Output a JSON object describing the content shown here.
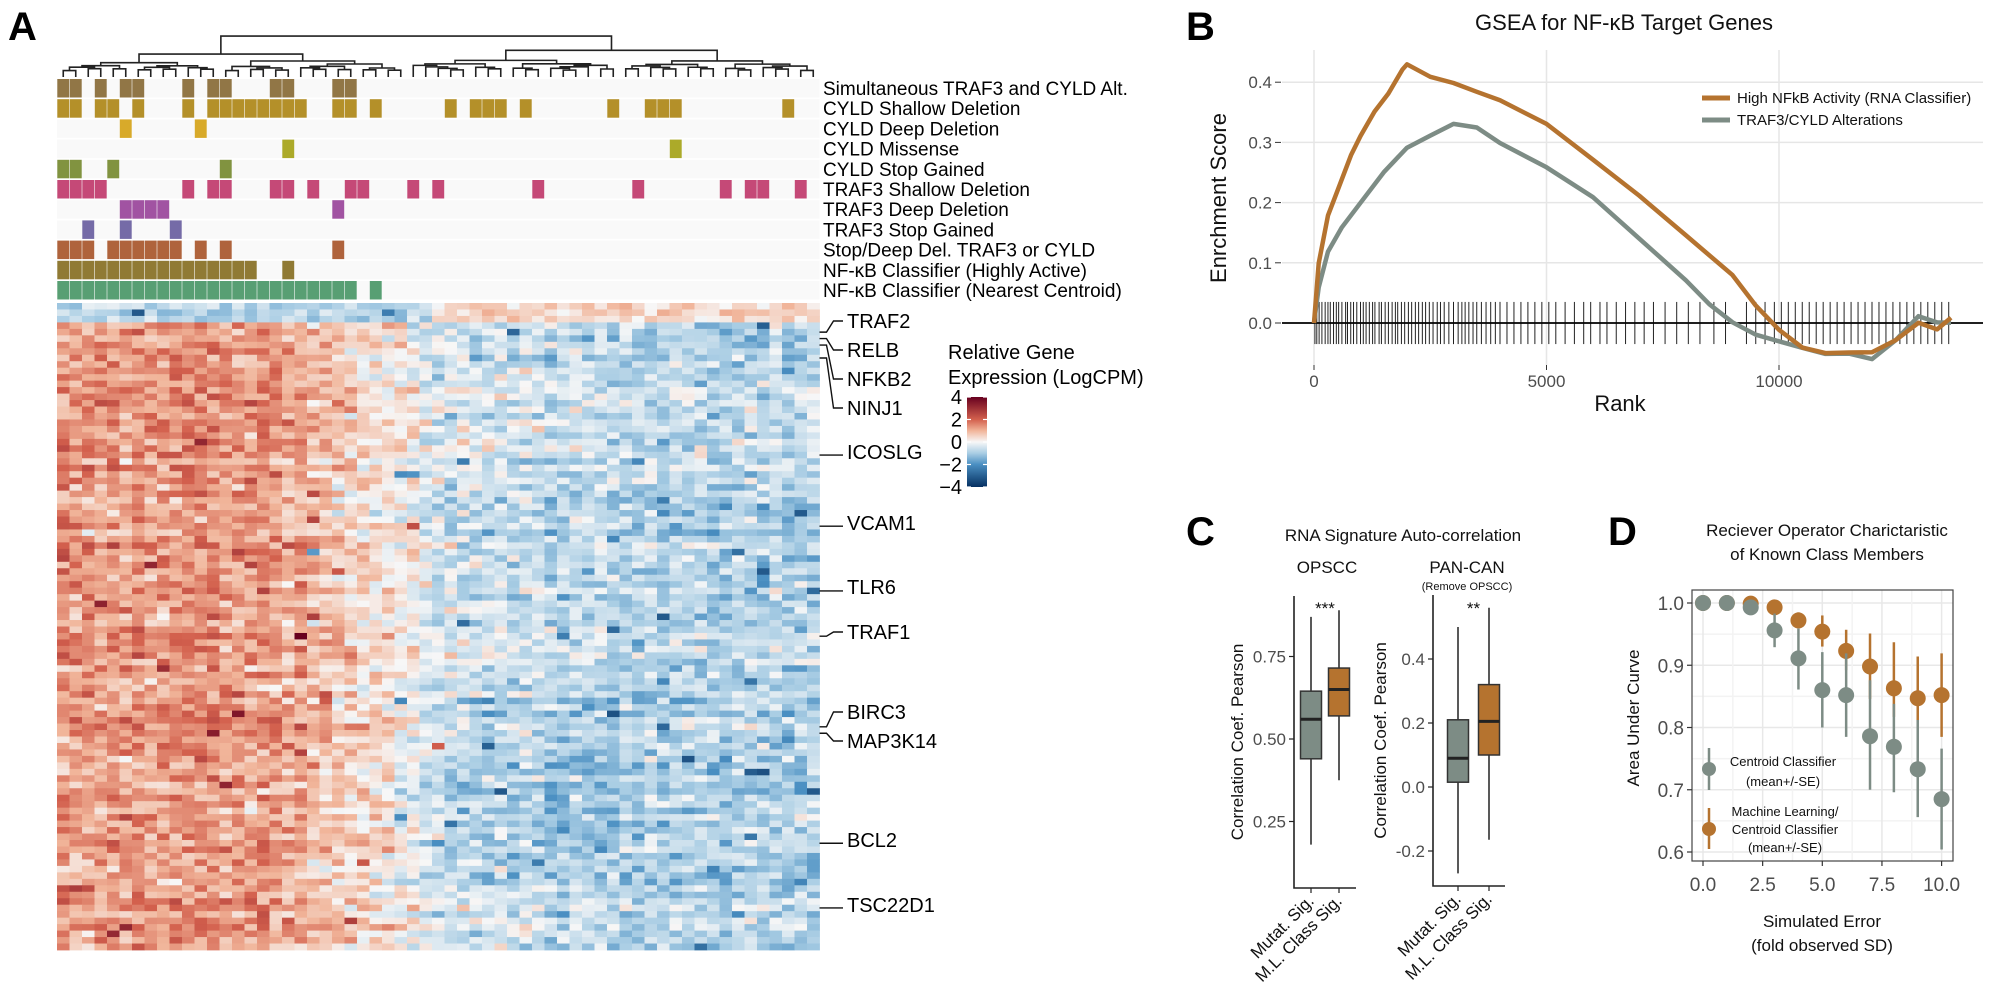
{
  "panel_letters": {
    "a": "A",
    "b": "B",
    "c": "C",
    "d": "D"
  },
  "chart_data": [
    {
      "panel": "A",
      "type": "heatmap",
      "annotation_tracks": [
        {
          "label": "Simultaneous TRAF3 and CYLD Alt.",
          "color": "#8b6f3c",
          "columns": [
            0,
            1,
            3,
            5,
            6,
            10,
            12,
            13,
            17,
            18,
            22,
            23
          ]
        },
        {
          "label": "CYLD Shallow Deletion",
          "color": "#b08a1e",
          "columns": [
            0,
            1,
            3,
            4,
            6,
            10,
            12,
            13,
            14,
            15,
            16,
            17,
            18,
            19,
            22,
            23,
            25,
            31,
            33,
            34,
            35,
            37,
            44,
            47,
            48,
            49,
            58
          ]
        },
        {
          "label": "CYLD Deep Deletion",
          "color": "#d6a51f",
          "columns": [
            5,
            11
          ]
        },
        {
          "label": "CYLD Missense",
          "color": "#a8a51e",
          "columns": [
            18,
            49
          ]
        },
        {
          "label": "CYLD Stop Gained",
          "color": "#7a8d36",
          "columns": [
            0,
            1,
            4,
            13
          ]
        },
        {
          "label": "TRAF3 Shallow Deletion",
          "color": "#c23f70",
          "columns": [
            0,
            1,
            2,
            3,
            10,
            12,
            13,
            17,
            18,
            20,
            23,
            24,
            28,
            30,
            38,
            46,
            53,
            55,
            56,
            59
          ]
        },
        {
          "label": "TRAF3 Deep Deletion",
          "color": "#9c4a9d",
          "columns": [
            5,
            6,
            7,
            8,
            22
          ]
        },
        {
          "label": "TRAF3 Stop Gained",
          "color": "#6e63a2",
          "columns": [
            2,
            5,
            9
          ]
        },
        {
          "label": "Stop/Deep Del. TRAF3 or CYLD",
          "color": "#ab5b31",
          "columns": [
            0,
            1,
            2,
            4,
            5,
            6,
            7,
            8,
            9,
            11,
            13,
            22
          ]
        },
        {
          "label": "NF-κB Classifier (Highly Active)",
          "color": "#8a7329",
          "columns": [
            0,
            1,
            2,
            3,
            4,
            5,
            6,
            7,
            8,
            9,
            10,
            11,
            12,
            13,
            14,
            15,
            18
          ]
        },
        {
          "label": "NF-κB Classifier (Nearest Centroid)",
          "color": "#4f9a6b",
          "columns": [
            0,
            1,
            2,
            3,
            4,
            5,
            6,
            7,
            8,
            9,
            10,
            11,
            12,
            13,
            14,
            15,
            16,
            17,
            18,
            19,
            20,
            21,
            22,
            23,
            25
          ]
        }
      ],
      "gene_labels": [
        {
          "gene": "TRAF2",
          "row": 4
        },
        {
          "gene": "RELB",
          "row": 5
        },
        {
          "gene": "NFKB2",
          "row": 6
        },
        {
          "gene": "NINJ1",
          "row": 8
        },
        {
          "gene": "ICOSLG",
          "row": 23
        },
        {
          "gene": "VCAM1",
          "row": 34
        },
        {
          "gene": "TLR6",
          "row": 44
        },
        {
          "gene": "TRAF1",
          "row": 51
        },
        {
          "gene": "BIRC3",
          "row": 65
        },
        {
          "gene": "MAP3K14",
          "row": 66
        },
        {
          "gene": "BCL2",
          "row": 83
        },
        {
          "gene": "TSC22D1",
          "row": 93
        }
      ],
      "colorbar": {
        "title_lines": [
          "Relative Gene",
          "Expression (LogCPM)"
        ],
        "ticks": [
          4,
          2,
          0,
          -2,
          -4
        ],
        "tick_labels": [
          "4",
          "2",
          "0",
          "−2",
          "−4"
        ],
        "range": [
          -4,
          4
        ],
        "colors": [
          "#053061",
          "#4a8fc2",
          "#a9cde4",
          "#f7f7f7",
          "#f1b59a",
          "#d3604d",
          "#67001f"
        ]
      },
      "pattern": "high expression (red) in left cluster, low expression (blue) in right cluster"
    },
    {
      "panel": "B",
      "type": "line",
      "title": "GSEA for NF-κB Target Genes",
      "xlabel": "Rank",
      "ylabel": "Enrchment Score",
      "xlim": [
        -650,
        14400
      ],
      "ylim": [
        -0.07,
        0.45
      ],
      "xticks": [
        0,
        5000,
        10000
      ],
      "xtick_labels": [
        "0",
        "5000",
        "10000"
      ],
      "yticks": [
        0.0,
        0.1,
        0.2,
        0.3,
        0.4
      ],
      "ytick_labels": [
        "0.0",
        "0.1",
        "0.2",
        "0.3",
        "0.4"
      ],
      "grid": true,
      "legend_position": "top-right",
      "series": [
        {
          "name": "High NFkB Activity (RNA Classifier)",
          "color": "#b5732f",
          "x": [
            0,
            100,
            300,
            500,
            800,
            1000,
            1300,
            1600,
            1900,
            2000,
            2500,
            3000,
            3500,
            4000,
            5000,
            6000,
            7000,
            8000,
            9000,
            9500,
            10000,
            10500,
            11000,
            11500,
            12000,
            12500,
            13000,
            13400,
            13700
          ],
          "y": [
            0,
            0.1,
            0.18,
            0.22,
            0.28,
            0.31,
            0.35,
            0.38,
            0.42,
            0.43,
            0.41,
            0.4,
            0.385,
            0.37,
            0.33,
            0.27,
            0.21,
            0.145,
            0.08,
            0.03,
            -0.01,
            -0.04,
            -0.05,
            -0.05,
            -0.05,
            -0.03,
            0.0,
            -0.01,
            0.01
          ]
        },
        {
          "name": "TRAF3/CYLD Alterations",
          "color": "#7d8c85",
          "x": [
            0,
            100,
            300,
            600,
            1000,
            1500,
            2000,
            2500,
            3000,
            3500,
            4000,
            5000,
            6000,
            7000,
            8000,
            8500,
            9000,
            9500,
            10000,
            10500,
            11000,
            11500,
            12000,
            12500,
            13000,
            13400,
            13700
          ],
          "y": [
            0,
            0.06,
            0.12,
            0.16,
            0.2,
            0.25,
            0.29,
            0.31,
            0.33,
            0.325,
            0.3,
            0.26,
            0.21,
            0.14,
            0.07,
            0.03,
            0.0,
            -0.02,
            -0.03,
            -0.04,
            -0.05,
            -0.05,
            -0.06,
            -0.03,
            0.01,
            0.0,
            0.0
          ]
        }
      ],
      "rug_ranks": [
        20,
        60,
        110,
        170,
        240,
        300,
        350,
        420,
        480,
        530,
        600,
        680,
        720,
        790,
        850,
        920,
        1000,
        1060,
        1120,
        1190,
        1260,
        1310,
        1400,
        1450,
        1530,
        1600,
        1680,
        1750,
        1800,
        1880,
        1950,
        2030,
        2100,
        2180,
        2250,
        2330,
        2400,
        2480,
        2560,
        2650,
        2720,
        2800,
        2900,
        3000,
        3100,
        3180,
        3250,
        3330,
        3420,
        3500,
        3600,
        3700,
        3800,
        3900,
        4000,
        4150,
        4300,
        4450,
        4600,
        4750,
        4900,
        5050,
        5200,
        5400,
        5600,
        5800,
        5950,
        6150,
        6300,
        6500,
        6700,
        6900,
        7100,
        7300,
        7550,
        7800,
        8050,
        8300,
        8600,
        8850,
        9300,
        9500,
        9700,
        9900,
        10050,
        10200,
        10350,
        10500,
        10650,
        10800,
        10950,
        11100,
        11250,
        11400,
        11550,
        11700,
        11850,
        12000,
        12150,
        12300,
        12450,
        12600,
        12750,
        12900,
        13050,
        13200,
        13350,
        13500,
        13650
      ]
    },
    {
      "panel": "C",
      "type": "box",
      "title": "RNA Signature Auto-correlation",
      "ylabel": "Correlation Coef. Pearson",
      "categories": [
        "Mutat. Sig.",
        "M.L. Class Sig."
      ],
      "category_colors": [
        "#7d8c85",
        "#b5732f"
      ],
      "facets": [
        {
          "name": "OPSCC",
          "subtitle": "",
          "significance": "***",
          "ylim": [
            0.05,
            0.93
          ],
          "yticks": [
            0.25,
            0.5,
            0.75
          ],
          "ytick_labels": [
            "0.25",
            "0.50",
            "0.75"
          ],
          "boxes": [
            {
              "whisker_low": 0.18,
              "q1": 0.44,
              "median": 0.56,
              "q3": 0.645,
              "whisker_high": 0.87
            },
            {
              "whisker_low": 0.375,
              "q1": 0.57,
              "median": 0.65,
              "q3": 0.715,
              "whisker_high": 0.89
            }
          ]
        },
        {
          "name": "PAN-CAN",
          "subtitle": "(Remove OPSCC)",
          "significance": "**",
          "ylim": [
            -0.31,
            0.6
          ],
          "yticks": [
            -0.2,
            0.0,
            0.2,
            0.4
          ],
          "ytick_labels": [
            "-0.2",
            "0.0",
            "0.2",
            "0.4"
          ],
          "boxes": [
            {
              "whisker_low": -0.27,
              "q1": 0.015,
              "median": 0.09,
              "q3": 0.21,
              "whisker_high": 0.5
            },
            {
              "whisker_low": -0.165,
              "q1": 0.1,
              "median": 0.205,
              "q3": 0.32,
              "whisker_high": 0.56
            }
          ]
        }
      ]
    },
    {
      "panel": "D",
      "type": "scatter",
      "title_lines": [
        "Reciever Operator Charictaristic",
        "of Known Class Members"
      ],
      "xlabel_lines": [
        "Simulated Error",
        "(fold observed SD)"
      ],
      "ylabel": "Area Under Curve",
      "xlim": [
        -0.5,
        10.5
      ],
      "ylim": [
        0.58,
        1.02
      ],
      "xticks": [
        0,
        2.5,
        5,
        7.5,
        10
      ],
      "xtick_labels": [
        "0.0",
        "2.5",
        "5.0",
        "7.5",
        "10.0"
      ],
      "yticks": [
        0.6,
        0.7,
        0.8,
        0.9,
        1.0
      ],
      "ytick_labels": [
        "0.6",
        "0.7",
        "0.8",
        "0.9",
        "1.0"
      ],
      "grid": true,
      "legend_position": "bottom-left (inside)",
      "series": [
        {
          "name_lines": [
            "Machine Learning/",
            "Centroid Classifier",
            "(mean+/-SE)"
          ],
          "color": "#b5732f",
          "x": [
            0,
            1,
            2,
            3,
            4,
            5,
            6,
            7,
            8,
            9,
            10
          ],
          "mean": [
            1.0,
            1.0,
            0.999,
            0.993,
            0.972,
            0.954,
            0.923,
            0.898,
            0.863,
            0.847,
            0.852
          ],
          "low": [
            1.0,
            1.0,
            0.997,
            0.985,
            0.96,
            0.93,
            0.892,
            0.846,
            0.817,
            0.809,
            0.785
          ],
          "high": [
            1.0,
            1.0,
            1.0,
            1.0,
            0.985,
            0.98,
            0.957,
            0.951,
            0.937,
            0.914,
            0.919
          ]
        },
        {
          "name_lines": [
            "Centroid Classifier",
            "(mean+/-SE)"
          ],
          "color": "#7d8c85",
          "x": [
            0,
            1,
            2,
            3,
            4,
            5,
            6,
            7,
            8,
            9,
            10
          ],
          "mean": [
            1.0,
            1.0,
            0.993,
            0.956,
            0.911,
            0.86,
            0.852,
            0.786,
            0.769,
            0.733,
            0.685
          ],
          "low": [
            1.0,
            1.0,
            0.985,
            0.929,
            0.861,
            0.8,
            0.785,
            0.7,
            0.696,
            0.656,
            0.604
          ],
          "high": [
            1.0,
            1.0,
            1.0,
            0.983,
            0.959,
            0.921,
            0.919,
            0.876,
            0.838,
            0.812,
            0.766
          ]
        }
      ]
    }
  ]
}
